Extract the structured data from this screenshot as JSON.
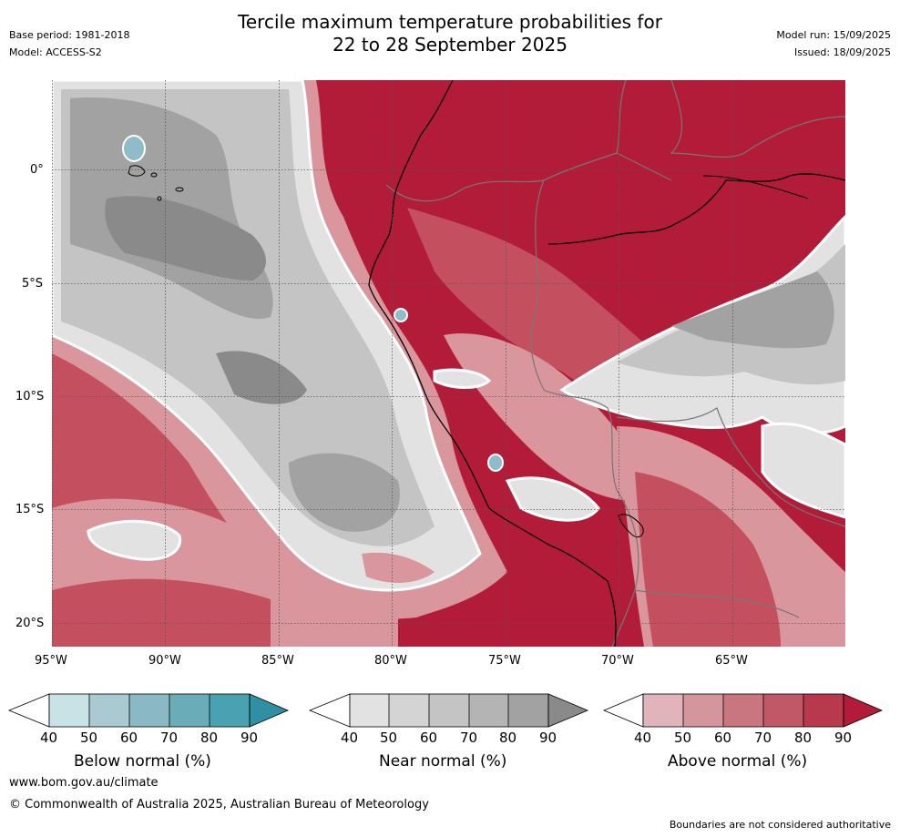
{
  "header": {
    "title_line1": "Tercile maximum temperature probabilities for",
    "title_line2": "22 to 28 September 2025",
    "base_period": "Base period: 1981-2018",
    "model": "Model: ACCESS-S2",
    "model_run": "Model run: 15/09/2025",
    "issued": "Issued: 18/09/2025"
  },
  "map": {
    "lat_labels": [
      "0°",
      "5°S",
      "10°S",
      "15°S",
      "20°S"
    ],
    "lon_labels": [
      "95°W",
      "90°W",
      "85°W",
      "80°W",
      "75°W",
      "70°W",
      "65°W"
    ],
    "colors": {
      "above_strong": "#b21c39",
      "above_mid": "#c4505f",
      "above_weak": "#d9969d",
      "near_light": "#e2e2e2",
      "near_mid": "#c4c4c4",
      "near_dark": "#8a8a8a",
      "below": "#8fbcc8"
    }
  },
  "legends": [
    {
      "title": "Below normal (%)",
      "ticks": [
        "40",
        "50",
        "60",
        "70",
        "80",
        "90"
      ],
      "colors": [
        "#c9e2e6",
        "#a8cad0",
        "#8bb9c3",
        "#6aadb9",
        "#4aa1b2",
        "#2f8fa3"
      ]
    },
    {
      "title": "Near normal (%)",
      "ticks": [
        "40",
        "50",
        "60",
        "70",
        "80",
        "90"
      ],
      "colors": [
        "#e2e2e2",
        "#d4d4d4",
        "#c4c4c4",
        "#b4b4b4",
        "#a2a2a2",
        "#8a8a8a"
      ]
    },
    {
      "title": "Above normal (%)",
      "ticks": [
        "40",
        "50",
        "60",
        "70",
        "80",
        "90"
      ],
      "colors": [
        "#e0b4ba",
        "#d4959d",
        "#c97680",
        "#c05866",
        "#b8394c",
        "#b21c39"
      ]
    }
  ],
  "footer": {
    "url": "www.bom.gov.au/climate",
    "copyright": "© Commonwealth of Australia 2025, Australian Bureau of Meteorology",
    "disclaimer": "Boundaries are not considered authoritative"
  }
}
